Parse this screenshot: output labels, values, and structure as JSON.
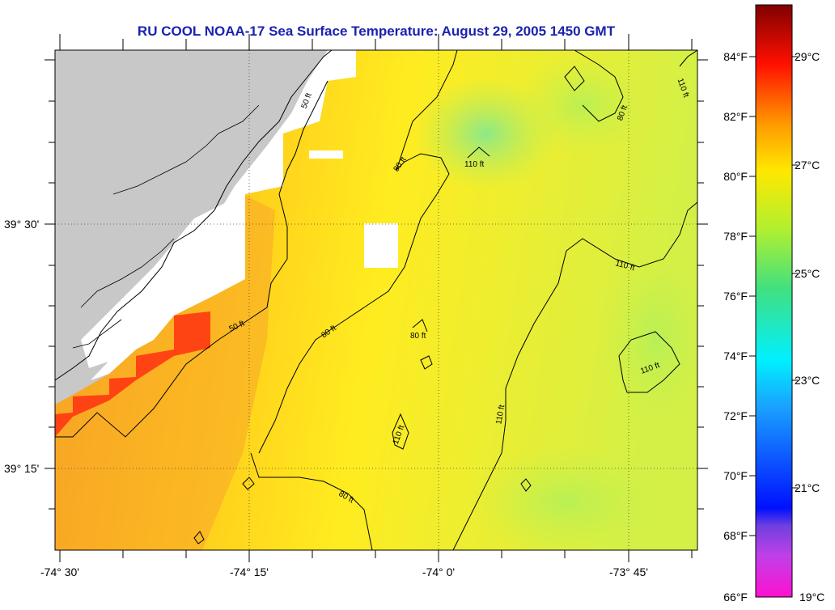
{
  "title": "RU COOL  NOAA-17  Sea Surface Temperature:  August 29, 2005 1450 GMT",
  "x_ticks": [
    "-74° 30'",
    "-74° 15'",
    "-74° 0'",
    "-73° 45'"
  ],
  "y_ticks": [
    "39° 30'",
    "39° 15'"
  ],
  "colorbar": {
    "fahrenheit": [
      "84°F",
      "82°F",
      "80°F",
      "78°F",
      "76°F",
      "74°F",
      "72°F",
      "70°F",
      "68°F",
      "66°F"
    ],
    "celsius": [
      "29°C",
      "27°C",
      "25°C",
      "23°C",
      "21°C",
      "19°C"
    ]
  },
  "contour_labels": [
    "50 ft",
    "50 ft",
    "80 ft",
    "80 ft",
    "80 ft",
    "80 ft",
    "80 ft",
    "110 ft",
    "110 ft",
    "110 ft",
    "110 ft",
    "110 ft",
    "110 ft"
  ],
  "colors": {
    "title": "#1a22b0",
    "land": "#c8c8c8",
    "no_data": "#ffffff",
    "sst_high": "#ff0000",
    "sst_mid": "#ffd000",
    "sst_low": "#66e080"
  }
}
